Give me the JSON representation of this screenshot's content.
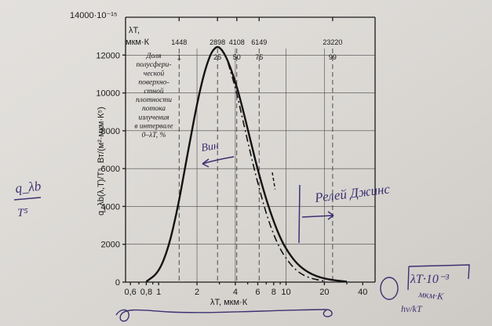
{
  "chart_data": {
    "type": "line",
    "title": "",
    "y_scale_label": "14000·10⁻¹⁵",
    "ylabel": "q_λb(λ,T)/T⁵, Вт/(м²·мкм·К⁵)",
    "xlabel": "λT, мкм·К",
    "x_scale": "log",
    "xlim": [
      0.55,
      50
    ],
    "ylim": [
      0,
      14000
    ],
    "yticks": [
      0,
      2000,
      4000,
      6000,
      8000,
      10000,
      12000
    ],
    "ytick_labels": [
      "0",
      "2000",
      "4000",
      "6000",
      "8000",
      "10000",
      "12000"
    ],
    "xticks": [
      0.6,
      0.8,
      1,
      2,
      4,
      6,
      8,
      10,
      20,
      40
    ],
    "xtick_labels": [
      "0,6",
      "0,8",
      "1",
      "2",
      "4",
      "6",
      "8",
      "10",
      "20",
      "40"
    ],
    "top_scale_title": [
      "λT,",
      "мкм·К"
    ],
    "top_ticks": [
      {
        "lambdaT": "1448",
        "fraction": "1",
        "x": 1.448
      },
      {
        "lambdaT": "2898",
        "fraction": "25",
        "x": 2.898
      },
      {
        "lambdaT": "4108",
        "fraction": "50",
        "x": 4.108
      },
      {
        "lambdaT": "6149",
        "fraction": "75",
        "x": 6.149
      },
      {
        "lambdaT": "23220",
        "fraction": "99",
        "x": 23.22
      }
    ],
    "annotation": [
      "Доля",
      "полусфери-",
      "ческой",
      "поверхно-",
      "стной",
      "плотности",
      "потока",
      "излучения",
      "в интервале",
      "0–λT, %"
    ],
    "series": [
      {
        "style": "solid",
        "x": [
          0.8,
          1.0,
          1.2,
          1.4,
          1.6,
          1.8,
          2.0,
          2.2,
          2.4,
          2.6,
          2.8,
          2.898,
          3.0,
          3.2,
          3.5,
          4.0,
          4.5,
          5.0,
          5.5,
          6.0,
          7.0,
          8.0,
          9.0,
          10.0,
          12.0,
          15.0,
          20.0,
          30.0
        ],
        "y": [
          30,
          500,
          1850,
          3800,
          5900,
          7800,
          9400,
          10650,
          11550,
          12150,
          12400,
          12440,
          12400,
          12200,
          11700,
          10600,
          9350,
          8100,
          6950,
          5950,
          4350,
          3200,
          2350,
          1760,
          1000,
          480,
          160,
          20
        ]
      },
      {
        "style": "dashed",
        "x": [
          3.5,
          4.0,
          4.5,
          5.0,
          5.5,
          6.0,
          7.0,
          8.0,
          9.0,
          10.0,
          12.0,
          15.0,
          20.0
        ],
        "y": [
          11600,
          10300,
          8800,
          7450,
          6250,
          5250,
          3600,
          2500,
          1750,
          1250,
          600,
          220,
          50
        ]
      },
      {
        "style": "dash-dot",
        "x": [
          7.8,
          8.0,
          8.2
        ],
        "y": [
          5800,
          5350,
          4900
        ]
      }
    ]
  },
  "handwriting": {
    "left_numerator": "q_λb",
    "left_denominator": "T⁵",
    "vin_label": "Вин",
    "rayleigh_label": "Релей Джинс",
    "unit_note": "λT·10⁻³",
    "unit_note_sub": "мкм·К",
    "side_note": "hν/kT"
  }
}
